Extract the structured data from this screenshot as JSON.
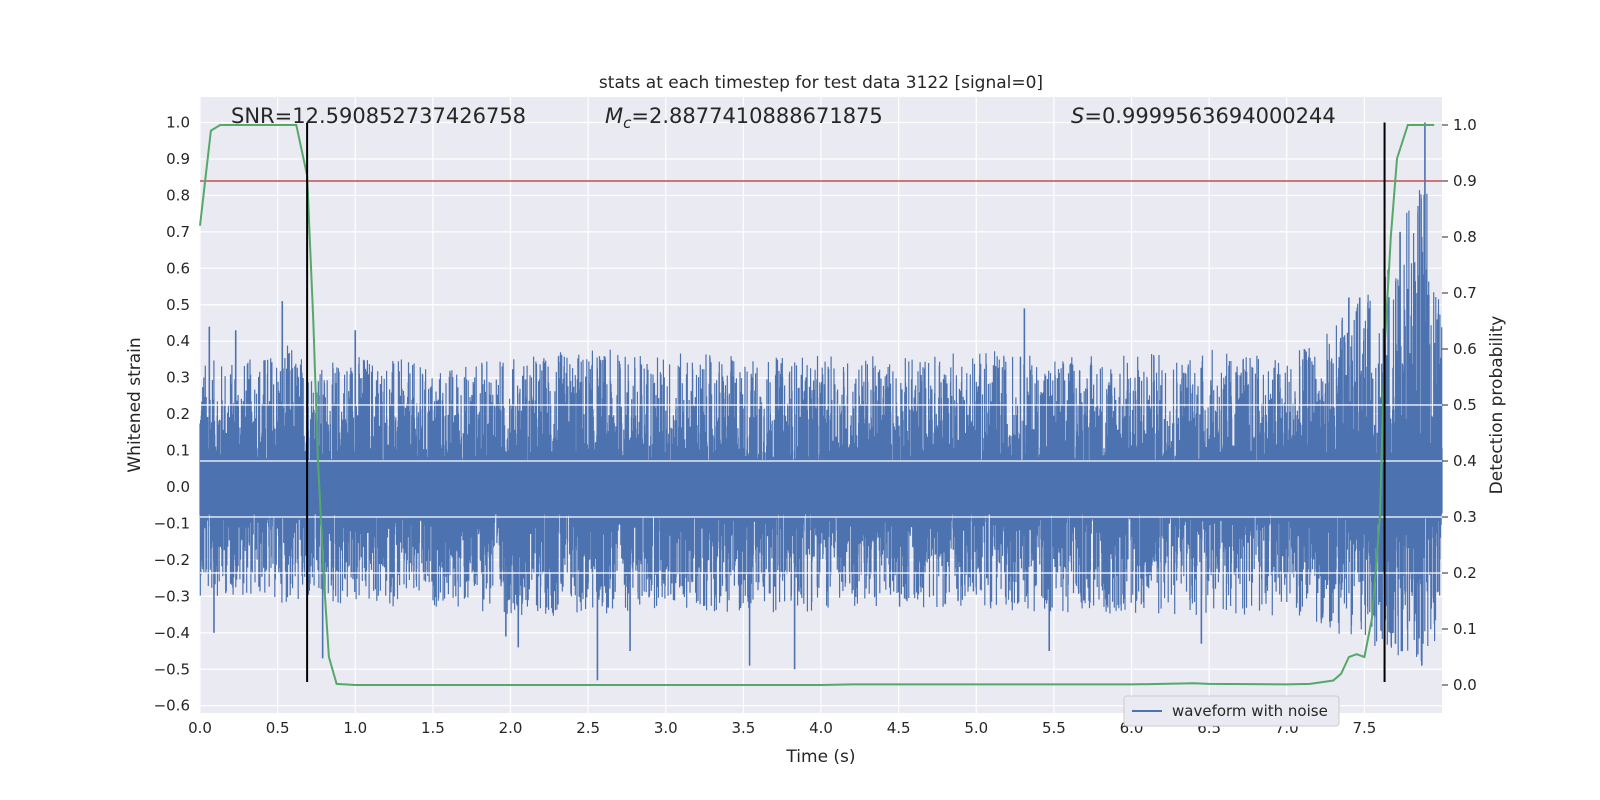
{
  "chart_data": {
    "type": "line",
    "title": "stats at each timestep for test data 3122 [signal=0]",
    "xlabel": "Time (s)",
    "ylabel_left": "Whitened strain",
    "ylabel_right": "Detection probability",
    "xlim": [
      0.0,
      8.0
    ],
    "ylim_left": [
      -0.62,
      1.07
    ],
    "ylim_right": [
      -0.05,
      1.05
    ],
    "x_ticks": [
      0.0,
      0.5,
      1.0,
      1.5,
      2.0,
      2.5,
      3.0,
      3.5,
      4.0,
      4.5,
      5.0,
      5.5,
      6.0,
      6.5,
      7.0,
      7.5
    ],
    "x_tick_labels": [
      "0.0",
      "0.5",
      "1.0",
      "1.5",
      "2.0",
      "2.5",
      "3.0",
      "3.5",
      "4.0",
      "4.5",
      "5.0",
      "5.5",
      "6.0",
      "6.5",
      "7.0",
      "7.5"
    ],
    "y_left_ticks": [
      -0.6,
      -0.5,
      -0.4,
      -0.3,
      -0.2,
      -0.1,
      0.0,
      0.1,
      0.2,
      0.3,
      0.4,
      0.5,
      0.6,
      0.7,
      0.8,
      0.9,
      1.0
    ],
    "y_left_tick_labels": [
      "−0.6",
      "−0.5",
      "−0.4",
      "−0.3",
      "−0.2",
      "−0.1",
      "0.0",
      "0.1",
      "0.2",
      "0.3",
      "0.4",
      "0.5",
      "0.6",
      "0.7",
      "0.8",
      "0.9",
      "1.0"
    ],
    "y_right_ticks": [
      0.0,
      0.1,
      0.2,
      0.3,
      0.4,
      0.5,
      0.6,
      0.7,
      0.8,
      0.9,
      1.0
    ],
    "y_right_tick_labels": [
      "0.0",
      "0.1",
      "0.2",
      "0.3",
      "0.4",
      "0.5",
      "0.6",
      "0.7",
      "0.8",
      "0.9",
      "1.0"
    ],
    "grid": true,
    "annotations": {
      "snr": "SNR=12.590852737426758",
      "mc_symbol": "M",
      "mc_subscript": "c",
      "mc_value": "=2.8877410888671875",
      "s_symbol": "S",
      "s_value": "=0.9999563694000244"
    },
    "legend": {
      "position": "lower-right",
      "entries": [
        "waveform with noise"
      ]
    },
    "threshold_line": {
      "axis": "right",
      "y": 0.9,
      "color": "#c44e52"
    },
    "vertical_lines": [
      {
        "x": 0.69,
        "y_from": -0.535,
        "y_to": 1.0,
        "color": "#000000"
      },
      {
        "x": 7.63,
        "y_from": -0.535,
        "y_to": 1.0,
        "color": "#000000"
      }
    ],
    "series": [
      {
        "name": "waveform with noise",
        "axis": "left",
        "color": "#4c72b0",
        "envelope": {
          "x": [
            0.0,
            0.3,
            0.55,
            0.8,
            1.0,
            1.5,
            2.0,
            2.5,
            3.0,
            3.5,
            4.0,
            4.5,
            5.0,
            5.5,
            6.0,
            6.5,
            7.0,
            7.2,
            7.4,
            7.6,
            7.75,
            7.9,
            8.0
          ],
          "upper": [
            0.35,
            0.35,
            0.4,
            0.33,
            0.38,
            0.33,
            0.36,
            0.38,
            0.37,
            0.36,
            0.36,
            0.36,
            0.38,
            0.36,
            0.37,
            0.38,
            0.36,
            0.4,
            0.5,
            0.55,
            0.75,
            0.85,
            0.45
          ],
          "lower": [
            -0.3,
            -0.3,
            -0.32,
            -0.34,
            -0.33,
            -0.33,
            -0.35,
            -0.36,
            -0.33,
            -0.35,
            -0.34,
            -0.33,
            -0.33,
            -0.35,
            -0.35,
            -0.36,
            -0.35,
            -0.38,
            -0.42,
            -0.44,
            -0.47,
            -0.48,
            -0.38
          ]
        },
        "spikes": [
          {
            "x": 0.53,
            "y": 0.51
          },
          {
            "x": 0.06,
            "y": 0.44
          },
          {
            "x": 0.23,
            "y": 0.43
          },
          {
            "x": 0.09,
            "y": -0.4
          },
          {
            "x": 0.79,
            "y": -0.47
          },
          {
            "x": 1.0,
            "y": 0.43
          },
          {
            "x": 1.97,
            "y": -0.41
          },
          {
            "x": 2.05,
            "y": -0.44
          },
          {
            "x": 2.56,
            "y": -0.53
          },
          {
            "x": 2.77,
            "y": -0.45
          },
          {
            "x": 3.54,
            "y": -0.49
          },
          {
            "x": 3.83,
            "y": -0.5
          },
          {
            "x": 5.31,
            "y": 0.49
          },
          {
            "x": 5.47,
            "y": -0.45
          },
          {
            "x": 6.45,
            "y": -0.43
          },
          {
            "x": 7.4,
            "y": 0.52
          },
          {
            "x": 7.47,
            "y": 0.52
          },
          {
            "x": 7.53,
            "y": 0.49
          },
          {
            "x": 7.73,
            "y": 0.7
          },
          {
            "x": 7.82,
            "y": 0.57
          },
          {
            "x": 7.85,
            "y": 0.58
          },
          {
            "x": 7.89,
            "y": 1.0
          },
          {
            "x": 7.87,
            "y": -0.49
          },
          {
            "x": 7.7,
            "y": -0.43
          },
          {
            "x": 7.97,
            "y": 0.46
          }
        ]
      },
      {
        "name": "",
        "axis": "right",
        "color": "#55a868",
        "x": [
          0.0,
          0.07,
          0.13,
          0.55,
          0.62,
          0.69,
          0.73,
          0.76,
          0.8,
          0.83,
          0.88,
          1.0,
          2.0,
          3.0,
          4.0,
          4.2,
          5.0,
          6.0,
          6.4,
          6.5,
          7.0,
          7.15,
          7.3,
          7.35,
          7.4,
          7.45,
          7.5,
          7.55,
          7.6,
          7.63,
          7.67,
          7.71,
          7.78,
          7.95
        ],
        "y": [
          0.82,
          0.99,
          1.0,
          1.0,
          1.0,
          0.91,
          0.65,
          0.4,
          0.18,
          0.05,
          0.002,
          0.0,
          0.0,
          0.0,
          0.0,
          0.001,
          0.001,
          0.001,
          0.003,
          0.002,
          0.001,
          0.002,
          0.008,
          0.02,
          0.05,
          0.055,
          0.05,
          0.12,
          0.3,
          0.6,
          0.8,
          0.94,
          1.0,
          1.0
        ]
      }
    ]
  }
}
